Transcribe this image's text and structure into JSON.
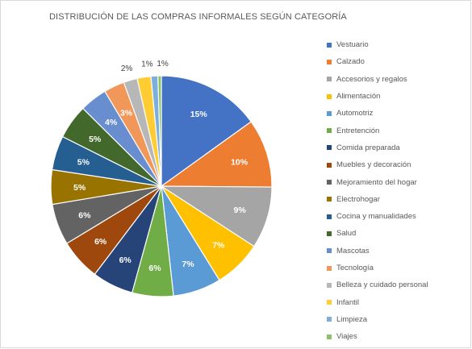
{
  "chart_data": {
    "type": "pie",
    "title": "DISTRIBUCIÓN DE LAS COMPRAS INFORMALES SEGÚN CATEGORÍA",
    "legend_position": "right",
    "slices": [
      {
        "name": "Vestuario",
        "value": 15,
        "label": "15%",
        "color": "#4472C4"
      },
      {
        "name": "Calzado",
        "value": 10,
        "label": "10%",
        "color": "#ED7D31"
      },
      {
        "name": "Accesorios y regalos",
        "value": 9,
        "label": "9%",
        "color": "#A5A5A5"
      },
      {
        "name": "Alimentación",
        "value": 7,
        "label": "7%",
        "color": "#FFC000"
      },
      {
        "name": "Automotriz",
        "value": 7,
        "label": "7%",
        "color": "#5B9BD5"
      },
      {
        "name": "Entretención",
        "value": 6,
        "label": "6%",
        "color": "#70AD47"
      },
      {
        "name": "Comida preparada",
        "value": 6,
        "label": "6%",
        "color": "#264478"
      },
      {
        "name": "Muebles y decoración",
        "value": 6,
        "label": "6%",
        "color": "#9E480E"
      },
      {
        "name": "Mejoramiento del hogar",
        "value": 6,
        "label": "6%",
        "color": "#636363"
      },
      {
        "name": "Electrohogar",
        "value": 5,
        "label": "5%",
        "color": "#997300"
      },
      {
        "name": "Cocina y manualidades",
        "value": 5,
        "label": "5%",
        "color": "#255E91"
      },
      {
        "name": "Salud",
        "value": 5,
        "label": "5%",
        "color": "#43682B"
      },
      {
        "name": "Mascotas",
        "value": 4,
        "label": "4%",
        "color": "#698ED0"
      },
      {
        "name": "Tecnología",
        "value": 3,
        "label": "3%",
        "color": "#F1975A"
      },
      {
        "name": "Belleza y cuidado personal",
        "value": 2,
        "label": "2%",
        "color": "#B7B7B7"
      },
      {
        "name": "Infantil",
        "value": 2,
        "label": "",
        "color": "#FFCD33"
      },
      {
        "name": "Limpieza",
        "value": 1,
        "label": "1%",
        "color": "#7CAFDD"
      },
      {
        "name": "Viajes",
        "value": 0.5,
        "label": "1%",
        "color": "#8CC168"
      }
    ]
  }
}
